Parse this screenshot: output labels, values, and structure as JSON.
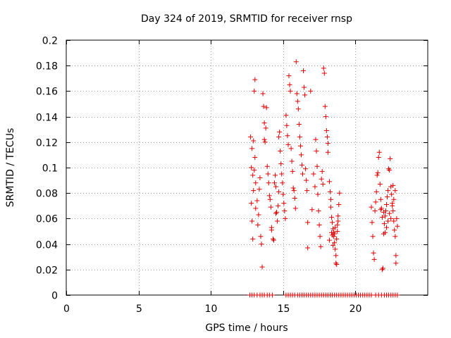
{
  "chart_data": {
    "type": "scatter",
    "title": "Day 324 of 2019, SRMTID for receiver rnsp",
    "xlabel": "GPS time / hours",
    "ylabel": "SRMTID / TECUs",
    "xlim": [
      0,
      25
    ],
    "ylim": [
      0,
      0.2
    ],
    "xticks": [
      0,
      5,
      10,
      15,
      20
    ],
    "xtick_labels": [
      "0",
      "5",
      "10",
      "15",
      "20"
    ],
    "yticks": [
      0,
      0.02,
      0.04,
      0.06,
      0.08,
      0.1,
      0.12,
      0.14,
      0.16,
      0.18,
      0.2
    ],
    "ytick_labels": [
      "0",
      "0.02",
      "0.04",
      "0.06",
      "0.08",
      "0.1",
      "0.12",
      "0.14",
      "0.16",
      "0.18",
      "0.2"
    ],
    "grid": true,
    "marker": "+",
    "color": "#e00000",
    "series": [
      {
        "name": "SRMTID",
        "points": [
          [
            12.75,
            0.124
          ],
          [
            12.8,
            0.1
          ],
          [
            12.85,
            0.115
          ],
          [
            12.9,
            0.094
          ],
          [
            12.95,
            0.082
          ],
          [
            12.8,
            0.072
          ],
          [
            12.85,
            0.058
          ],
          [
            12.9,
            0.044
          ],
          [
            12.95,
            0.121
          ],
          [
            13.0,
            0.098
          ],
          [
            13.05,
            0.169
          ],
          [
            13.0,
            0.16
          ],
          [
            13.05,
            0.108
          ],
          [
            13.1,
            0.088
          ],
          [
            13.1,
            0.068
          ],
          [
            13.2,
            0.074
          ],
          [
            13.25,
            0.055
          ],
          [
            13.3,
            0.063
          ],
          [
            13.35,
            0.083
          ],
          [
            13.4,
            0.092
          ],
          [
            13.45,
            0.046
          ],
          [
            13.5,
            0.04
          ],
          [
            13.55,
            0.022
          ],
          [
            13.6,
            0.158
          ],
          [
            13.65,
            0.148
          ],
          [
            13.7,
            0.135
          ],
          [
            13.7,
            0.122
          ],
          [
            13.75,
            0.12
          ],
          [
            13.8,
            0.131
          ],
          [
            13.85,
            0.147
          ],
          [
            13.9,
            0.101
          ],
          [
            13.95,
            0.095
          ],
          [
            14.0,
            0.088
          ],
          [
            14.05,
            0.078
          ],
          [
            14.1,
            0.075
          ],
          [
            14.15,
            0.069
          ],
          [
            14.2,
            0.051
          ],
          [
            14.2,
            0.053
          ],
          [
            14.3,
            0.044
          ],
          [
            14.35,
            0.043
          ],
          [
            14.4,
            0.088
          ],
          [
            14.45,
            0.094
          ],
          [
            14.5,
            0.085
          ],
          [
            14.5,
            0.064
          ],
          [
            14.55,
            0.065
          ],
          [
            14.6,
            0.058
          ],
          [
            14.65,
            0.07
          ],
          [
            14.7,
            0.081
          ],
          [
            14.7,
            0.124
          ],
          [
            14.75,
            0.128
          ],
          [
            14.8,
            0.113
          ],
          [
            14.85,
            0.103
          ],
          [
            14.9,
            0.095
          ],
          [
            14.95,
            0.088
          ],
          [
            15.0,
            0.079
          ],
          [
            15.05,
            0.072
          ],
          [
            15.1,
            0.066
          ],
          [
            15.15,
            0.06
          ],
          [
            15.2,
            0.141
          ],
          [
            15.25,
            0.133
          ],
          [
            15.3,
            0.125
          ],
          [
            15.35,
            0.118
          ],
          [
            15.4,
            0.172
          ],
          [
            15.45,
            0.165
          ],
          [
            15.5,
            0.16
          ],
          [
            15.55,
            0.115
          ],
          [
            15.6,
            0.105
          ],
          [
            15.65,
            0.097
          ],
          [
            15.7,
            0.084
          ],
          [
            15.75,
            0.082
          ],
          [
            15.8,
            0.076
          ],
          [
            15.85,
            0.068
          ],
          [
            15.9,
            0.183
          ],
          [
            15.95,
            0.158
          ],
          [
            16.0,
            0.152
          ],
          [
            16.05,
            0.146
          ],
          [
            16.1,
            0.134
          ],
          [
            16.15,
            0.124
          ],
          [
            16.2,
            0.117
          ],
          [
            16.25,
            0.11
          ],
          [
            16.3,
            0.102
          ],
          [
            16.35,
            0.095
          ],
          [
            16.4,
            0.176
          ],
          [
            16.45,
            0.163
          ],
          [
            16.5,
            0.157
          ],
          [
            16.55,
            0.099
          ],
          [
            16.6,
            0.09
          ],
          [
            16.65,
            0.082
          ],
          [
            16.7,
            0.037
          ],
          [
            16.7,
            0.057
          ],
          [
            16.9,
            0.16
          ],
          [
            17.0,
            0.067
          ],
          [
            17.1,
            0.095
          ],
          [
            17.2,
            0.085
          ],
          [
            17.25,
            0.122
          ],
          [
            17.3,
            0.113
          ],
          [
            17.35,
            0.101
          ],
          [
            17.4,
            0.079
          ],
          [
            17.45,
            0.066
          ],
          [
            17.5,
            0.055
          ],
          [
            17.55,
            0.046
          ],
          [
            17.6,
            0.038
          ],
          [
            17.65,
            0.091
          ],
          [
            17.7,
            0.097
          ],
          [
            17.75,
            0.087
          ],
          [
            17.8,
            0.178
          ],
          [
            17.85,
            0.174
          ],
          [
            17.9,
            0.148
          ],
          [
            17.95,
            0.14
          ],
          [
            18.0,
            0.129
          ],
          [
            18.05,
            0.124
          ],
          [
            18.1,
            0.112
          ],
          [
            18.1,
            0.119
          ],
          [
            18.2,
            0.089
          ],
          [
            18.25,
            0.081
          ],
          [
            18.3,
            0.075
          ],
          [
            18.35,
            0.061
          ],
          [
            18.4,
            0.057
          ],
          [
            18.45,
            0.052
          ],
          [
            18.5,
            0.046
          ],
          [
            18.55,
            0.041
          ],
          [
            18.6,
            0.036
          ],
          [
            18.65,
            0.031
          ],
          [
            18.65,
            0.025
          ],
          [
            18.7,
            0.024
          ],
          [
            18.75,
            0.055
          ],
          [
            18.8,
            0.058
          ],
          [
            18.8,
            0.062
          ],
          [
            18.85,
            0.071
          ],
          [
            18.9,
            0.08
          ],
          [
            18.3,
            0.069
          ],
          [
            18.4,
            0.047
          ],
          [
            18.5,
            0.049
          ],
          [
            18.6,
            0.053
          ],
          [
            18.7,
            0.044
          ],
          [
            18.2,
            0.043
          ],
          [
            18.35,
            0.049
          ],
          [
            18.45,
            0.039
          ],
          [
            18.55,
            0.048
          ],
          [
            18.75,
            0.05
          ],
          [
            21.1,
            0.069
          ],
          [
            21.15,
            0.057
          ],
          [
            21.2,
            0.046
          ],
          [
            21.25,
            0.033
          ],
          [
            21.3,
            0.028
          ],
          [
            21.35,
            0.066
          ],
          [
            21.4,
            0.073
          ],
          [
            21.45,
            0.081
          ],
          [
            21.5,
            0.094
          ],
          [
            21.55,
            0.096
          ],
          [
            21.6,
            0.108
          ],
          [
            21.65,
            0.112
          ],
          [
            21.7,
            0.087
          ],
          [
            21.75,
            0.075
          ],
          [
            21.8,
            0.068
          ],
          [
            21.85,
            0.02
          ],
          [
            21.9,
            0.021
          ],
          [
            21.95,
            0.048
          ],
          [
            22.0,
            0.056
          ],
          [
            22.05,
            0.062
          ],
          [
            22.1,
            0.066
          ],
          [
            22.15,
            0.071
          ],
          [
            22.2,
            0.077
          ],
          [
            22.25,
            0.082
          ],
          [
            22.3,
            0.099
          ],
          [
            22.35,
            0.098
          ],
          [
            22.4,
            0.107
          ],
          [
            22.45,
            0.085
          ],
          [
            22.5,
            0.079
          ],
          [
            22.55,
            0.072
          ],
          [
            22.6,
            0.066
          ],
          [
            22.65,
            0.058
          ],
          [
            22.7,
            0.051
          ],
          [
            22.75,
            0.046
          ],
          [
            22.8,
            0.031
          ],
          [
            22.8,
            0.025
          ],
          [
            22.85,
            0.06
          ],
          [
            22.9,
            0.054
          ],
          [
            22.35,
            0.064
          ],
          [
            22.45,
            0.06
          ],
          [
            22.55,
            0.07
          ],
          [
            22.65,
            0.075
          ],
          [
            22.25,
            0.058
          ],
          [
            22.15,
            0.053
          ],
          [
            22.05,
            0.049
          ],
          [
            21.95,
            0.065
          ],
          [
            21.85,
            0.061
          ],
          [
            21.75,
            0.067
          ],
          [
            22.75,
            0.082
          ],
          [
            22.6,
            0.086
          ]
        ]
      },
      {
        "name": "zero",
        "points": [
          [
            12.7,
            0
          ],
          [
            12.85,
            0
          ],
          [
            13.0,
            0
          ],
          [
            13.2,
            0
          ],
          [
            13.4,
            0
          ],
          [
            13.55,
            0
          ],
          [
            13.7,
            0
          ],
          [
            13.9,
            0
          ],
          [
            14.05,
            0
          ],
          [
            14.25,
            0
          ],
          [
            15.2,
            0
          ],
          [
            15.35,
            0
          ],
          [
            15.5,
            0
          ],
          [
            15.65,
            0
          ],
          [
            15.8,
            0
          ],
          [
            16.0,
            0
          ],
          [
            16.15,
            0
          ],
          [
            16.3,
            0
          ],
          [
            16.45,
            0
          ],
          [
            16.6,
            0
          ],
          [
            16.75,
            0
          ],
          [
            16.9,
            0
          ],
          [
            17.05,
            0
          ],
          [
            17.2,
            0
          ],
          [
            17.35,
            0
          ],
          [
            17.5,
            0
          ],
          [
            17.65,
            0
          ],
          [
            17.8,
            0
          ],
          [
            17.95,
            0
          ],
          [
            18.1,
            0
          ],
          [
            18.25,
            0
          ],
          [
            18.4,
            0
          ],
          [
            18.55,
            0
          ],
          [
            18.7,
            0
          ],
          [
            18.85,
            0
          ],
          [
            19.0,
            0
          ],
          [
            19.15,
            0
          ],
          [
            19.3,
            0
          ],
          [
            19.45,
            0
          ],
          [
            19.6,
            0
          ],
          [
            19.75,
            0
          ],
          [
            19.9,
            0
          ],
          [
            20.05,
            0
          ],
          [
            20.2,
            0
          ],
          [
            20.35,
            0
          ],
          [
            20.5,
            0
          ],
          [
            20.65,
            0
          ],
          [
            20.8,
            0
          ],
          [
            20.95,
            0
          ],
          [
            21.1,
            0
          ],
          [
            21.4,
            0
          ],
          [
            21.6,
            0
          ],
          [
            21.8,
            0
          ],
          [
            22.0,
            0
          ],
          [
            22.15,
            0
          ],
          [
            22.3,
            0
          ],
          [
            22.45,
            0
          ],
          [
            22.6,
            0
          ],
          [
            22.75,
            0
          ],
          [
            22.9,
            0
          ]
        ]
      }
    ]
  }
}
